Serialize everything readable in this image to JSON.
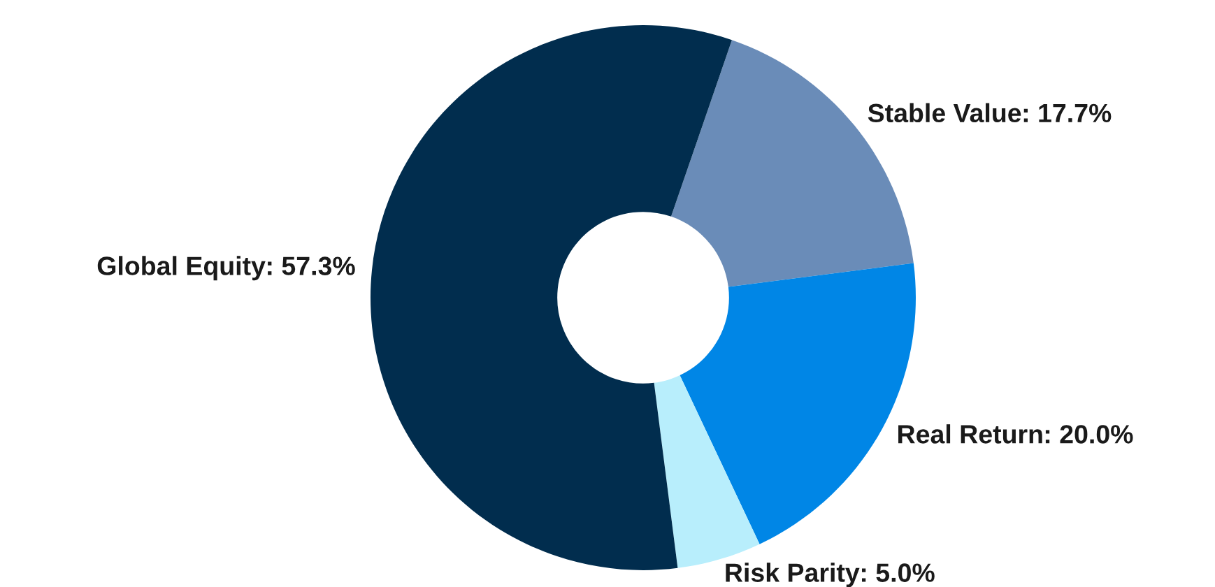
{
  "chart_data": {
    "type": "donut",
    "categories": [
      "Stable Value",
      "Real Return",
      "Risk Parity",
      "Global Equity"
    ],
    "values": [
      17.7,
      20.0,
      5.0,
      57.3
    ],
    "colors": [
      "#6a8cb8",
      "#0086e6",
      "#b8eefc",
      "#012d4e"
    ],
    "value_labels": [
      ": 17.7%",
      ": 20.0%",
      ": 5.0%",
      ": 57.3%"
    ],
    "legend": false
  }
}
